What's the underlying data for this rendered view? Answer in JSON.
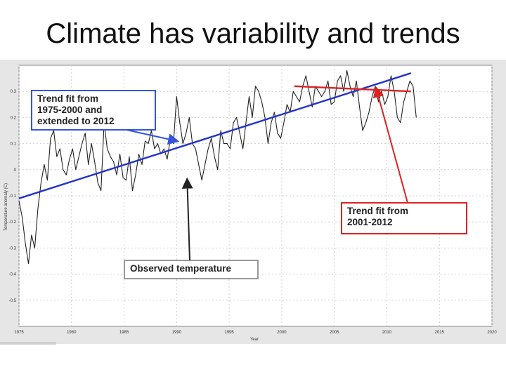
{
  "slide": {
    "title": "Climate has variability and trends"
  },
  "chart_data": {
    "type": "line",
    "title": "",
    "xlabel": "Year",
    "ylabel": "Temperature anomaly (C)",
    "xlim": [
      1975,
      2020
    ],
    "ylim": [
      -0.6,
      0.4
    ],
    "x_ticks": [
      1975,
      1980,
      1985,
      1990,
      1995,
      2000,
      2005,
      2010,
      2015,
      2020
    ],
    "x_tick_labels": [
      "1975",
      "1980",
      "1985",
      "1990",
      "1995",
      "2000",
      "2005",
      "2010",
      "2015",
      "2020"
    ],
    "y_ticks": [
      0.3,
      0.2,
      0.1,
      0,
      -0.1,
      -0.2,
      -0.3,
      -0.4,
      -0.5
    ],
    "y_tick_labels": [
      "0.3",
      "0.2",
      "0.1",
      "0",
      "-0.1",
      "-0.2",
      "-0.3",
      "-0.4",
      "-0.5"
    ],
    "grid": true,
    "series": [
      {
        "name": "Observed temperature",
        "color": "#222222",
        "x": [
          1975.0,
          1975.3,
          1975.6,
          1975.9,
          1976.2,
          1976.5,
          1976.8,
          1977.1,
          1977.4,
          1977.7,
          1978.0,
          1978.3,
          1978.6,
          1978.9,
          1979.2,
          1979.5,
          1979.8,
          1980.1,
          1980.4,
          1980.7,
          1981.0,
          1981.3,
          1981.6,
          1981.9,
          1982.2,
          1982.5,
          1982.8,
          1983.1,
          1983.4,
          1983.7,
          1984.0,
          1984.3,
          1984.6,
          1984.9,
          1985.2,
          1985.5,
          1985.8,
          1986.1,
          1986.4,
          1986.7,
          1987.0,
          1987.3,
          1987.6,
          1987.9,
          1988.2,
          1988.5,
          1988.8,
          1989.1,
          1989.4,
          1989.7,
          1990.0,
          1990.3,
          1990.6,
          1990.9,
          1991.2,
          1991.5,
          1991.8,
          1992.1,
          1992.4,
          1992.7,
          1993.0,
          1993.3,
          1993.6,
          1993.9,
          1994.2,
          1994.5,
          1994.8,
          1995.1,
          1995.4,
          1995.7,
          1996.0,
          1996.3,
          1996.6,
          1996.9,
          1997.2,
          1997.5,
          1997.8,
          1998.1,
          1998.4,
          1998.7,
          1999.0,
          1999.3,
          1999.6,
          1999.9,
          2000.2,
          2000.5,
          2000.8,
          2001.1,
          2001.4,
          2001.7,
          2002.0,
          2002.3,
          2002.6,
          2002.9,
          2003.2,
          2003.5,
          2003.8,
          2004.1,
          2004.4,
          2004.7,
          2005.0,
          2005.3,
          2005.6,
          2005.9,
          2006.2,
          2006.5,
          2006.8,
          2007.1,
          2007.4,
          2007.7,
          2008.0,
          2008.3,
          2008.6,
          2008.9,
          2009.2,
          2009.5,
          2009.8,
          2010.1,
          2010.4,
          2010.7,
          2011.0,
          2011.3,
          2011.6,
          2011.9,
          2012.2,
          2012.5,
          2012.8
        ],
        "values": [
          -0.12,
          -0.18,
          -0.28,
          -0.36,
          -0.25,
          -0.3,
          -0.15,
          -0.05,
          0.02,
          -0.04,
          0.12,
          0.15,
          0.05,
          0.08,
          0.0,
          -0.02,
          0.04,
          0.08,
          0.0,
          0.05,
          0.1,
          0.14,
          0.02,
          0.1,
          0.03,
          -0.05,
          -0.08,
          0.18,
          0.08,
          0.05,
          0.03,
          -0.02,
          0.06,
          -0.03,
          -0.04,
          0.05,
          -0.08,
          -0.02,
          0.06,
          0.02,
          0.11,
          0.1,
          0.15,
          0.08,
          0.1,
          0.06,
          0.08,
          0.04,
          0.12,
          0.1,
          0.28,
          0.18,
          0.1,
          0.14,
          0.2,
          0.1,
          0.08,
          0.02,
          -0.04,
          0.02,
          0.08,
          0.12,
          0.05,
          0.0,
          0.15,
          0.1,
          0.1,
          0.08,
          0.18,
          0.2,
          0.14,
          0.08,
          0.18,
          0.28,
          0.2,
          0.32,
          0.3,
          0.26,
          0.2,
          0.1,
          0.18,
          0.22,
          0.14,
          0.12,
          0.18,
          0.25,
          0.22,
          0.3,
          0.28,
          0.26,
          0.32,
          0.36,
          0.3,
          0.24,
          0.32,
          0.3,
          0.28,
          0.3,
          0.34,
          0.25,
          0.26,
          0.34,
          0.36,
          0.3,
          0.38,
          0.32,
          0.28,
          0.34,
          0.24,
          0.15,
          0.18,
          0.22,
          0.28,
          0.32,
          0.26,
          0.3,
          0.25,
          0.28,
          0.36,
          0.3,
          0.2,
          0.18,
          0.26,
          0.3,
          0.34,
          0.32,
          0.2
        ]
      },
      {
        "name": "Trend fit from 1975-2000 and extended to 2012",
        "color": "#2233cc",
        "x": [
          1975,
          2012.3
        ],
        "values": [
          -0.11,
          0.37
        ]
      },
      {
        "name": "Trend fit from 2001-2012",
        "color": "#dd2222",
        "x": [
          2001.2,
          2012.3
        ],
        "values": [
          0.32,
          0.3
        ]
      }
    ],
    "annotations": [
      {
        "name": "trend-1975-2000-callout",
        "lines": [
          "Trend fit from",
          "1975-2000 and",
          "extended to 2012"
        ],
        "border_color": "#3355dd",
        "arrow_color": "#3355dd",
        "points_to": [
          1990.0,
          0.11
        ]
      },
      {
        "name": "observed-temperature-callout",
        "lines": [
          "Observed temperature"
        ],
        "border_color": "#999999",
        "arrow_color": "#222222",
        "points_to": [
          1991.0,
          -0.04
        ]
      },
      {
        "name": "trend-2001-2012-callout",
        "lines": [
          "Trend fit from",
          "2001-2012"
        ],
        "border_color": "#dd2222",
        "arrow_color": "#dd2222",
        "points_to": [
          2009.0,
          0.31
        ]
      }
    ]
  }
}
